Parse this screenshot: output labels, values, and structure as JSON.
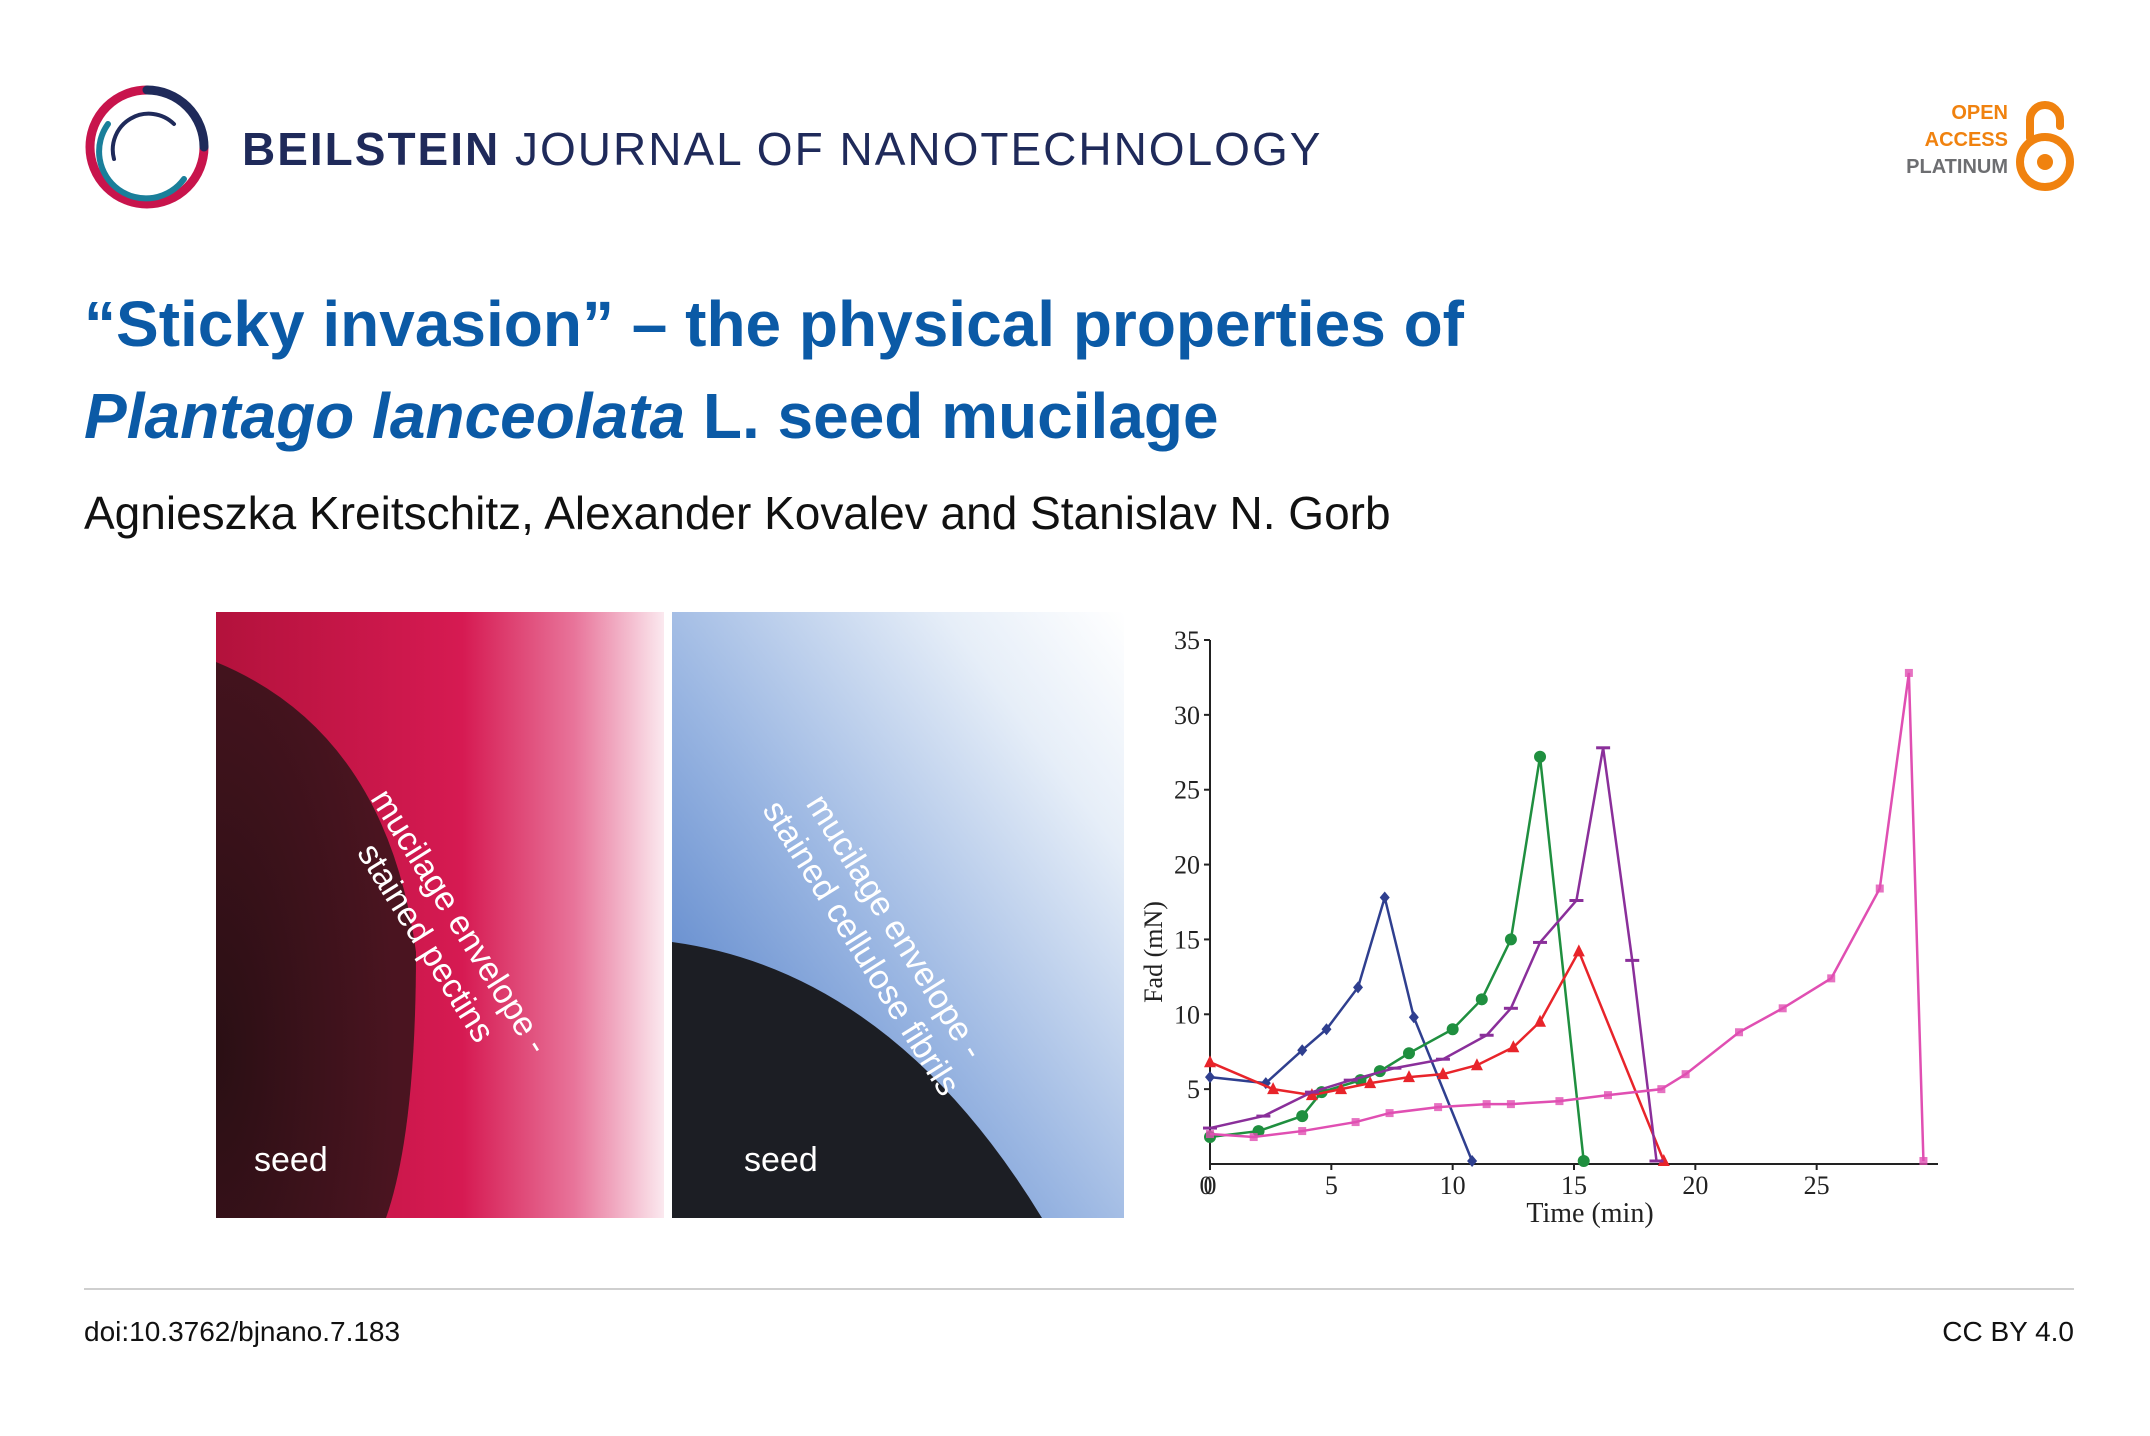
{
  "header": {
    "journal_bold": "BEILSTEIN",
    "journal_rest": "JOURNAL OF NANOTECHNOLOGY",
    "oa_line1": "OPEN",
    "oa_line2": "ACCESS",
    "oa_line3": "PLATINUM"
  },
  "article": {
    "title_line1": "“Sticky invasion” – the physical properties of",
    "title_italic": "Plantago lanceolata",
    "title_line2_rest": " L. seed mucilage",
    "authors": "Agnieszka Kreitschitz, Alexander Kovalev and Stanislav N. Gorb"
  },
  "figure": {
    "panel_red": {
      "label_line1": "mucilage envelope -",
      "label_line2": "stained pectins",
      "seed": "seed"
    },
    "panel_blue": {
      "label_line1": "mucilage envelope -",
      "label_line2": "stained cellulose fibrils",
      "seed": "seed"
    }
  },
  "chart_data": {
    "type": "line",
    "title": "",
    "xlabel": "Time (min)",
    "ylabel": "Fad (mN)",
    "xlim": [
      0,
      30
    ],
    "ylim": [
      0,
      35
    ],
    "xticks": [
      0,
      5,
      10,
      15,
      20,
      25
    ],
    "yticks": [
      5,
      10,
      15,
      20,
      25,
      30,
      35
    ],
    "series": [
      {
        "name": "blue",
        "color": "#2f3f8f",
        "marker": "diamond",
        "x": [
          0,
          2.3,
          3.8,
          4.8,
          6.1,
          7.2,
          8.4,
          10.8
        ],
        "y": [
          5.8,
          5.4,
          7.6,
          9.0,
          11.8,
          17.8,
          9.8,
          0.2
        ]
      },
      {
        "name": "green",
        "color": "#1f8f3f",
        "marker": "circle",
        "x": [
          0,
          2.0,
          3.8,
          4.6,
          6.2,
          7.0,
          8.2,
          10.0,
          11.2,
          12.4,
          13.6,
          15.4
        ],
        "y": [
          1.8,
          2.2,
          3.2,
          4.8,
          5.6,
          6.2,
          7.4,
          9.0,
          11.0,
          15.0,
          27.2,
          0.2
        ]
      },
      {
        "name": "red",
        "color": "#e8242a",
        "marker": "triangle",
        "x": [
          0,
          2.6,
          4.2,
          5.4,
          6.6,
          8.2,
          9.6,
          11.0,
          12.5,
          13.6,
          15.2,
          18.7
        ],
        "y": [
          6.8,
          5.0,
          4.6,
          5.0,
          5.4,
          5.8,
          6.0,
          6.6,
          7.8,
          9.5,
          14.2,
          0.2
        ]
      },
      {
        "name": "purple",
        "color": "#8a2f9a",
        "marker": "dash",
        "x": [
          0,
          2.2,
          4.2,
          5.8,
          7.6,
          9.6,
          11.4,
          12.4,
          13.6,
          15.1,
          16.2,
          17.4,
          18.4
        ],
        "y": [
          2.4,
          3.2,
          4.8,
          5.6,
          6.4,
          7.0,
          8.6,
          10.4,
          14.8,
          17.6,
          27.8,
          13.6,
          0.2
        ]
      },
      {
        "name": "pink",
        "color": "#e04fb2",
        "marker": "square",
        "x": [
          0,
          1.8,
          3.8,
          6.0,
          7.4,
          9.4,
          11.4,
          12.4,
          14.4,
          16.4,
          18.6,
          19.6,
          21.8,
          23.6,
          25.6,
          27.6,
          28.8,
          29.4
        ],
        "y": [
          2.0,
          1.8,
          2.2,
          2.8,
          3.4,
          3.8,
          4.0,
          4.0,
          4.2,
          4.6,
          5.0,
          6.0,
          8.8,
          10.4,
          12.4,
          18.4,
          32.8,
          0.2
        ]
      }
    ]
  },
  "footer": {
    "doi": "doi:10.3762/bjnano.7.183",
    "license": "CC BY 4.0"
  }
}
